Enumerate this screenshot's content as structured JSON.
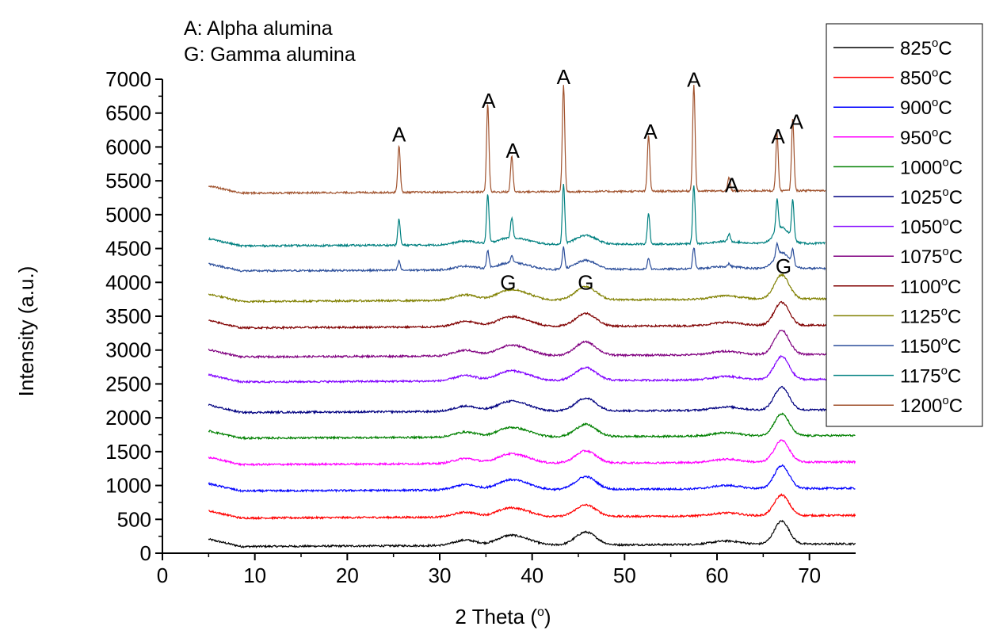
{
  "chart_data": {
    "type": "line",
    "title": "",
    "xlabel": "2 Theta (",
    "xlabel_sup": "o",
    "xlabel_end": ")",
    "ylabel": "Intensity (a.u.)",
    "xlim": [
      0,
      75
    ],
    "ylim": [
      0,
      7000
    ],
    "xticks": [
      0,
      10,
      20,
      30,
      40,
      50,
      60,
      70
    ],
    "yticks": [
      0,
      500,
      1000,
      1500,
      2000,
      2500,
      3000,
      3500,
      4000,
      4500,
      5000,
      5500,
      6000,
      6500,
      7000
    ],
    "grid": false,
    "legend_position": "top-right",
    "notes": [
      "A: Alpha alumina",
      "G: Gamma alumina"
    ],
    "degree_symbol": "o",
    "degree_unit": "C",
    "series": [
      {
        "name": "825",
        "color": "#000000",
        "baseline": 100,
        "kind": "gamma",
        "gscale": 1.0
      },
      {
        "name": "850",
        "color": "#ff0000",
        "baseline": 520,
        "kind": "gamma",
        "gscale": 0.9
      },
      {
        "name": "900",
        "color": "#0000ff",
        "baseline": 920,
        "kind": "gamma",
        "gscale": 1.0
      },
      {
        "name": "950",
        "color": "#ff00ff",
        "baseline": 1310,
        "kind": "gamma",
        "gscale": 0.95
      },
      {
        "name": "1000",
        "color": "#008000",
        "baseline": 1700,
        "kind": "gamma",
        "gscale": 0.95
      },
      {
        "name": "1025",
        "color": "#000080",
        "baseline": 2080,
        "kind": "gamma",
        "gscale": 1.0
      },
      {
        "name": "1050",
        "color": "#8000ff",
        "baseline": 2530,
        "kind": "gamma",
        "gscale": 1.0
      },
      {
        "name": "1075",
        "color": "#800080",
        "baseline": 2900,
        "kind": "gamma",
        "gscale": 1.05
      },
      {
        "name": "1100",
        "color": "#800000",
        "baseline": 3330,
        "kind": "gamma",
        "gscale": 1.0
      },
      {
        "name": "1125",
        "color": "#808000",
        "baseline": 3720,
        "kind": "gamma",
        "gscale": 1.05
      },
      {
        "name": "1150",
        "color": "#2a4d9a",
        "baseline": 4170,
        "kind": "mixed",
        "gscale": 0.7,
        "ascale": 0.2
      },
      {
        "name": "1175",
        "color": "#008080",
        "baseline": 4540,
        "kind": "mixed",
        "gscale": 0.7,
        "ascale": 0.55
      },
      {
        "name": "1200",
        "color": "#a0522d",
        "baseline": 5320,
        "kind": "alpha",
        "gscale": 0.0,
        "ascale": 1.0
      }
    ],
    "gamma_peaks": [
      {
        "x": 32.8,
        "height": 80,
        "width": 1.2
      },
      {
        "x": 37.4,
        "height": 130,
        "width": 1.3
      },
      {
        "x": 39.4,
        "height": 60,
        "width": 1.2
      },
      {
        "x": 45.8,
        "height": 190,
        "width": 1.1
      },
      {
        "x": 61.0,
        "height": 50,
        "width": 1.5
      },
      {
        "x": 67.0,
        "height": 340,
        "width": 0.8
      }
    ],
    "alpha_peaks": [
      {
        "x": 25.6,
        "height": 700
      },
      {
        "x": 35.2,
        "height": 1300
      },
      {
        "x": 37.8,
        "height": 530
      },
      {
        "x": 43.4,
        "height": 1580
      },
      {
        "x": 52.6,
        "height": 830
      },
      {
        "x": 57.5,
        "height": 1580
      },
      {
        "x": 61.3,
        "height": 200
      },
      {
        "x": 66.5,
        "height": 850
      },
      {
        "x": 68.2,
        "height": 1060
      }
    ],
    "peak_labels": [
      {
        "text": "A",
        "x": 25.6,
        "y": 6080
      },
      {
        "text": "A",
        "x": 35.3,
        "y": 6580
      },
      {
        "text": "A",
        "x": 37.9,
        "y": 5840
      },
      {
        "text": "A",
        "x": 43.4,
        "y": 6930
      },
      {
        "text": "A",
        "x": 52.8,
        "y": 6120
      },
      {
        "text": "A",
        "x": 57.5,
        "y": 6890
      },
      {
        "text": "A",
        "x": 61.6,
        "y": 5330
      },
      {
        "text": "A",
        "x": 66.6,
        "y": 6050
      },
      {
        "text": "A",
        "x": 68.6,
        "y": 6270
      },
      {
        "text": "G",
        "x": 37.4,
        "y": 3890
      },
      {
        "text": "G",
        "x": 45.8,
        "y": 3890
      },
      {
        "text": "G",
        "x": 67.2,
        "y": 4130
      }
    ]
  }
}
